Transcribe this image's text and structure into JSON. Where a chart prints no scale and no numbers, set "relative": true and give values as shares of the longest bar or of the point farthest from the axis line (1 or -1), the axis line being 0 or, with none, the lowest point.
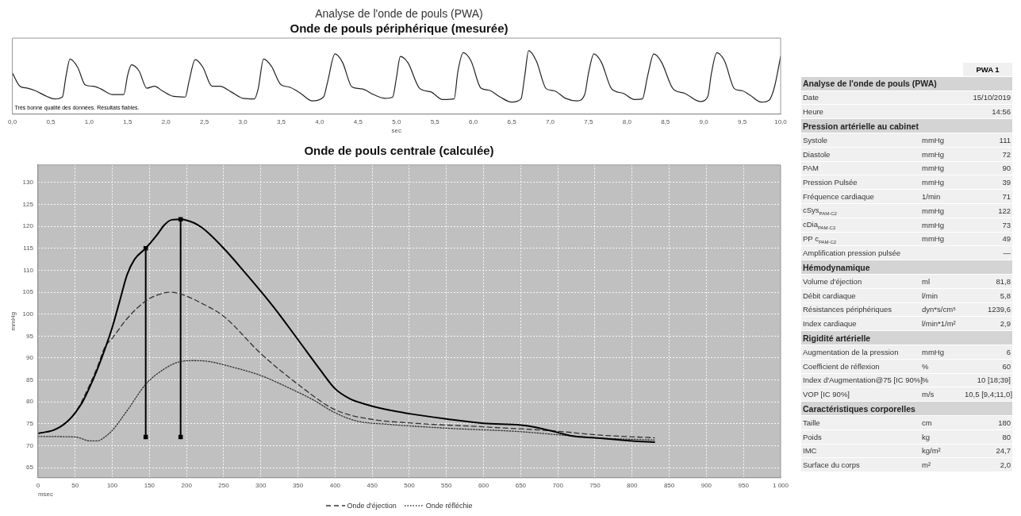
{
  "chart_data": [
    {
      "type": "line",
      "title": "Analyse de l'onde de pouls (PWA)",
      "subtitle": "Onde de pouls périphérique (mesurée)",
      "xlabel": "sec",
      "relative": true,
      "annotations": [
        "Très bonne qualité des données. Résultats fiables."
      ],
      "xlim": [
        0,
        10
      ],
      "xticks": [
        {
          "value": 0,
          "label": "0,0"
        },
        {
          "value": 0.5,
          "label": "0,5"
        },
        {
          "value": 1,
          "label": "1,0"
        },
        {
          "value": 1.5,
          "label": "1,5"
        },
        {
          "value": 2,
          "label": "2,0"
        },
        {
          "value": 2.5,
          "label": "2,5"
        },
        {
          "value": 3,
          "label": "3,0"
        },
        {
          "value": 3.5,
          "label": "3,5"
        },
        {
          "value": 4,
          "label": "4,0"
        },
        {
          "value": 4.5,
          "label": "4,5"
        },
        {
          "value": 5,
          "label": "5,0"
        },
        {
          "value": 5.5,
          "label": "5,5"
        },
        {
          "value": 6,
          "label": "6,0"
        },
        {
          "value": 6.5,
          "label": "6,5"
        },
        {
          "value": 7,
          "label": "7,0"
        },
        {
          "value": 7.5,
          "label": "7,5"
        },
        {
          "value": 8,
          "label": "8,0"
        },
        {
          "value": 8.5,
          "label": "8,5"
        },
        {
          "value": 9,
          "label": "9,0"
        },
        {
          "value": 9.5,
          "label": "9,5"
        },
        {
          "value": 10,
          "label": "10,0"
        }
      ],
      "tick_labels": "x",
      "series": [
        {
          "color": "#222222",
          "line_style": "solid",
          "x": [
            0,
            0.1,
            0.2,
            0.3,
            0.45,
            0.55,
            0.65,
            0.7,
            0.75,
            0.85,
            0.95,
            1.05,
            1.15,
            1.3,
            1.45,
            1.5,
            1.55,
            1.65,
            1.75,
            1.85,
            1.95,
            2.1,
            2.25,
            2.3,
            2.38,
            2.48,
            2.6,
            2.7,
            2.85,
            3.0,
            3.15,
            3.2,
            3.27,
            3.37,
            3.5,
            3.6,
            3.75,
            3.9,
            4.05,
            4.1,
            4.2,
            4.3,
            4.42,
            4.55,
            4.7,
            4.85,
            4.95,
            5.0,
            5.05,
            5.15,
            5.3,
            5.45,
            5.6,
            5.75,
            5.8,
            5.87,
            5.97,
            6.1,
            6.2,
            6.35,
            6.5,
            6.62,
            6.67,
            6.72,
            6.82,
            6.95,
            7.05,
            7.2,
            7.35,
            7.45,
            7.5,
            7.57,
            7.67,
            7.8,
            7.95,
            8.1,
            8.2,
            8.27,
            8.35,
            8.45,
            8.6,
            8.75,
            8.95,
            9.05,
            9.1,
            9.17,
            9.27,
            9.4,
            9.5,
            9.6,
            9.75,
            9.85,
            9.92,
            10
          ],
          "values": [
            0.65,
            0.44,
            0.41,
            0.37,
            0.28,
            0.24,
            0.27,
            0.61,
            0.87,
            0.74,
            0.46,
            0.44,
            0.4,
            0.31,
            0.31,
            0.61,
            0.78,
            0.68,
            0.41,
            0.44,
            0.37,
            0.28,
            0.27,
            0.52,
            0.86,
            0.74,
            0.44,
            0.44,
            0.35,
            0.25,
            0.24,
            0.4,
            0.87,
            0.76,
            0.46,
            0.43,
            0.33,
            0.21,
            0.27,
            0.49,
            0.95,
            0.81,
            0.43,
            0.4,
            0.31,
            0.25,
            0.27,
            0.58,
            0.91,
            0.81,
            0.41,
            0.35,
            0.23,
            0.24,
            0.68,
            0.97,
            0.84,
            0.41,
            0.38,
            0.27,
            0.19,
            0.24,
            0.61,
            1.0,
            0.84,
            0.4,
            0.37,
            0.25,
            0.21,
            0.31,
            0.65,
            0.95,
            0.81,
            0.4,
            0.33,
            0.23,
            0.24,
            0.61,
            0.95,
            0.82,
            0.4,
            0.33,
            0.2,
            0.27,
            0.65,
            0.97,
            0.84,
            0.4,
            0.37,
            0.3,
            0.19,
            0.22,
            0.43,
            0.91
          ]
        }
      ]
    },
    {
      "type": "line",
      "title": "Onde de pouls centrale (calculée)",
      "xlabel": "msec",
      "ylabel": "mmHg",
      "xlim": [
        0,
        1000
      ],
      "xticks": [
        0,
        50,
        100,
        150,
        200,
        250,
        300,
        350,
        400,
        450,
        500,
        550,
        600,
        650,
        700,
        750,
        800,
        850,
        900,
        950,
        {
          "value": 1000,
          "label": "1 000"
        }
      ],
      "ylim": [
        62.7,
        134
      ],
      "yticks": [
        65,
        70,
        75,
        80,
        85,
        90,
        95,
        100,
        105,
        110,
        115,
        120,
        125,
        130
      ],
      "grid": true,
      "legend": "bottom",
      "series": [
        {
          "color": "#000000",
          "line_style": "solid",
          "x": [
            0,
            20,
            30,
            40,
            50,
            60,
            70,
            80,
            90,
            100,
            110,
            120,
            130,
            145,
            160,
            170,
            180,
            192,
            200,
            210,
            220,
            230,
            250,
            270,
            300,
            320,
            350,
            380,
            400,
            420,
            440,
            460,
            500,
            550,
            600,
            650,
            670,
            700,
            720,
            750,
            800,
            830
          ],
          "values": [
            72.8,
            73.5,
            74.3,
            75.6,
            77.5,
            80,
            83.5,
            87.5,
            92,
            97,
            103,
            109,
            112.5,
            115,
            118,
            120.3,
            121.5,
            121.6,
            121.4,
            120.8,
            119.8,
            118.4,
            115,
            111.2,
            105.2,
            101,
            94.2,
            87.3,
            83,
            80.7,
            79.5,
            78.6,
            77.3,
            76.1,
            75.1,
            74.7,
            74.2,
            73,
            72.2,
            71.8,
            71.1,
            70.8
          ]
        },
        {
          "name": "Onde d'éjection",
          "color": "#333333",
          "line_style": "dashed",
          "x": [
            0,
            20,
            40,
            50,
            60,
            80,
            90,
            100,
            120,
            145,
            160,
            178,
            192,
            220,
            250,
            300,
            350,
            400,
            450,
            500,
            600,
            700,
            750,
            830
          ],
          "values": [
            72.8,
            73.5,
            75.6,
            77.5,
            80.5,
            88,
            92.5,
            94.5,
            99,
            103,
            104.3,
            105,
            104.6,
            102.5,
            99.5,
            91,
            84,
            78.2,
            76,
            75.2,
            74.3,
            73.3,
            72.5,
            71.8
          ]
        },
        {
          "name": "Onde réfléchie",
          "color": "#333333",
          "line_style": "dotted",
          "x": [
            0,
            50,
            70,
            80,
            90,
            100,
            120,
            145,
            170,
            192,
            210,
            230,
            260,
            300,
            340,
            370,
            400,
            430,
            470,
            550,
            650,
            700,
            750,
            830
          ],
          "values": [
            72.1,
            72,
            71.1,
            71.1,
            72,
            73.5,
            78,
            84,
            87.5,
            89.2,
            89.4,
            89.2,
            88,
            86,
            83,
            80.5,
            77.5,
            75.6,
            74.9,
            74,
            73.2,
            72.5,
            71.8,
            71.3
          ]
        },
        {
          "color": "#000000",
          "line_style": "solid",
          "marker": "square",
          "x": [
            145,
            145
          ],
          "values": [
            72,
            115
          ]
        },
        {
          "color": "#000000",
          "line_style": "solid",
          "marker": "square",
          "x": [
            192,
            192
          ],
          "values": [
            72,
            121.6
          ]
        }
      ]
    },
    {
      "type": "other",
      "categories": [
        null,
        null,
        "PWA 1"
      ],
      "cell_labels": [
        [
          "Analyse de l'onde de pouls (PWA)",
          null,
          null
        ],
        [
          "Date",
          null,
          "15/10/2019"
        ],
        [
          "Heure",
          null,
          "14:56"
        ],
        [
          "Pression artérielle au cabinet",
          null,
          null
        ],
        [
          "Systole",
          "mmHg",
          "111"
        ],
        [
          "Diastole",
          "mmHg",
          "72"
        ],
        [
          "PAM",
          "mmHg",
          "90"
        ],
        [
          "Pression Pulsée",
          "mmHg",
          "39"
        ],
        [
          "Fréquence cardiaque",
          "1/min",
          "71"
        ],
        [
          "cSys$_{PAM-C2}$",
          "mmHg",
          "122"
        ],
        [
          "cDia$_{PAM-C2}$",
          "mmHg",
          "73"
        ],
        [
          "PP c$_{PAM-C2}$",
          "mmHg",
          "49"
        ],
        [
          "Amplification pression pulsée",
          null,
          "—"
        ],
        [
          "Hémodynamique",
          null,
          null
        ],
        [
          "Volume d'éjection",
          "ml",
          "81,8"
        ],
        [
          "Débit cardiaque",
          "l/min",
          "5,8"
        ],
        [
          "Résistances périphériques",
          "dyn*s/cm⁵",
          "1239,6"
        ],
        [
          "Index cardiaque",
          "l/min*1/m²",
          "2,9"
        ],
        [
          "Rigidité artérielle",
          null,
          null
        ],
        [
          "Augmentation de la pression",
          "mmHg",
          "6"
        ],
        [
          "Coefficient de réflexion",
          "%",
          "60"
        ],
        [
          "Index d'Augmentation@75 [IC 90%]",
          "%",
          "10 [18;39]"
        ],
        [
          "VOP [IC 90%]",
          "m/s",
          "10,5 [9,4;11,0]"
        ],
        [
          "Caractéristiques corporelles",
          null,
          null
        ],
        [
          "Taille",
          "cm",
          "180"
        ],
        [
          "Poids",
          "kg",
          "80"
        ],
        [
          "IMC",
          "kg/m²",
          "24,7"
        ],
        [
          "Surface du corps",
          "m²",
          "2,0"
        ]
      ]
    }
  ]
}
